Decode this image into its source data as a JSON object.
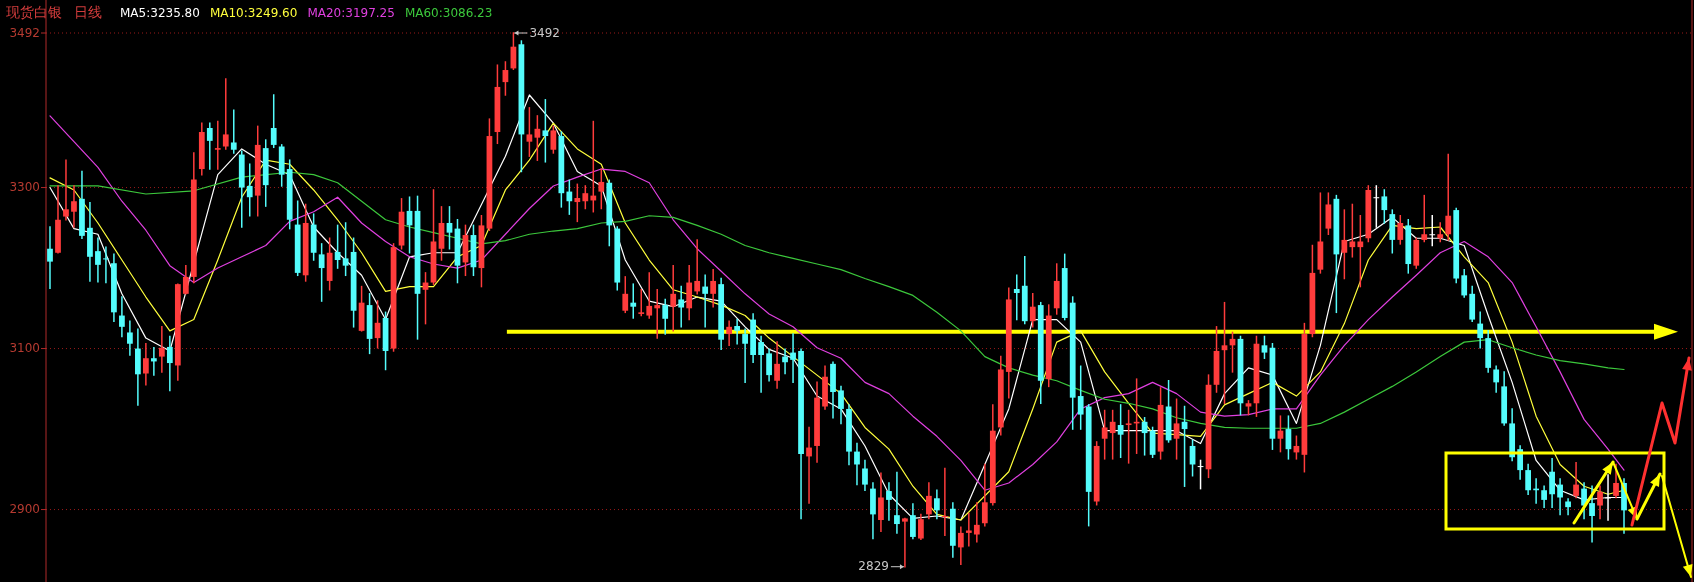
{
  "chart_data": {
    "type": "candlestick",
    "title": "现货白银",
    "subtitle": "日线",
    "legend": "top left",
    "grid": "y",
    "ylim": [
      2810,
      3533
    ],
    "yticks": [
      2900,
      3100,
      3300,
      3492
    ],
    "categories": [
      null,
      null,
      null,
      null,
      null,
      null,
      null,
      null,
      null,
      null,
      null,
      null,
      null,
      null,
      null,
      null,
      null,
      null,
      null,
      null,
      null,
      null,
      null,
      null,
      null,
      null,
      null,
      null,
      null,
      null,
      null,
      null,
      null,
      null,
      null,
      null,
      null,
      null,
      null,
      null,
      null,
      null,
      null,
      null,
      null,
      null,
      null,
      null,
      null,
      null,
      null,
      null,
      null,
      null,
      null,
      null,
      null,
      null,
      null,
      null,
      null,
      null,
      null,
      null,
      null,
      null,
      null,
      null,
      null,
      null,
      null,
      null,
      null,
      null,
      null,
      null,
      null,
      null,
      null,
      null,
      null,
      null,
      null,
      null,
      null,
      null,
      null,
      null,
      null,
      null,
      null,
      null,
      null,
      null,
      null,
      null,
      null,
      null,
      null,
      null,
      null,
      null,
      null,
      null,
      null,
      null,
      null,
      null,
      null,
      null,
      null,
      null,
      null,
      null,
      null,
      null,
      null,
      null,
      null,
      null,
      null,
      null,
      null,
      null,
      null,
      null,
      null,
      null,
      null,
      null,
      null,
      null,
      null,
      null,
      null,
      null,
      null,
      null,
      null,
      null,
      null,
      null,
      null,
      null,
      null,
      null,
      null,
      null,
      null,
      null,
      null,
      null,
      null,
      null,
      null,
      null,
      null,
      null,
      null,
      null,
      null,
      null,
      null,
      null,
      null,
      null,
      null,
      null,
      null,
      null,
      null,
      null,
      null,
      null,
      null,
      null,
      null,
      null,
      null,
      null,
      null,
      null,
      null,
      null,
      null,
      null,
      null,
      null,
      null,
      null,
      null,
      null,
      null,
      null,
      null,
      null,
      null,
      null
    ],
    "ohlc": [
      [
        3224,
        3251,
        3175,
        3208
      ],
      [
        3219,
        3302,
        3219,
        3260
      ],
      [
        3264,
        3334,
        3260,
        3273
      ],
      [
        3270,
        3302,
        3251,
        3283
      ],
      [
        3286,
        3320,
        3237,
        3240
      ],
      [
        3250,
        3281,
        3184,
        3214
      ],
      [
        3221,
        3237,
        3183,
        3204
      ],
      [
        3212,
        3226,
        3182,
        3211
      ],
      [
        3206,
        3217,
        3134,
        3145
      ],
      [
        3141,
        3164,
        3115,
        3127
      ],
      [
        3120,
        3134,
        3092,
        3106
      ],
      [
        3100,
        3124,
        3030,
        3068
      ],
      [
        3069,
        3106,
        3055,
        3088
      ],
      [
        3088,
        3101,
        3067,
        3084
      ],
      [
        3090,
        3127,
        3071,
        3101
      ],
      [
        3102,
        3115,
        3048,
        3082
      ],
      [
        3079,
        3180,
        3061,
        3180
      ],
      [
        3168,
        3203,
        3168,
        3189
      ],
      [
        3189,
        3343,
        3182,
        3310
      ],
      [
        3323,
        3380,
        3316,
        3369
      ],
      [
        3374,
        3380,
        3323,
        3358
      ],
      [
        3347,
        3382,
        3323,
        3349
      ],
      [
        3351,
        3435,
        3348,
        3366
      ],
      [
        3356,
        3396,
        3343,
        3347
      ],
      [
        3341,
        3345,
        3251,
        3300
      ],
      [
        3302,
        3329,
        3265,
        3288
      ],
      [
        3290,
        3376,
        3265,
        3353
      ],
      [
        3349,
        3359,
        3277,
        3303
      ],
      [
        3374,
        3415,
        3350,
        3353
      ],
      [
        3351,
        3353,
        3302,
        3316
      ],
      [
        3323,
        3334,
        3249,
        3260
      ],
      [
        3254,
        3283,
        3191,
        3194
      ],
      [
        3191,
        3279,
        3184,
        3256
      ],
      [
        3254,
        3267,
        3210,
        3219
      ],
      [
        3217,
        3230,
        3159,
        3200
      ],
      [
        3184,
        3237,
        3173,
        3219
      ],
      [
        3220,
        3253,
        3200,
        3210
      ],
      [
        3212,
        3256,
        3191,
        3203
      ],
      [
        3220,
        3237,
        3127,
        3147
      ],
      [
        3122,
        3177,
        3122,
        3157
      ],
      [
        3154,
        3168,
        3094,
        3112
      ],
      [
        3113,
        3159,
        3101,
        3132
      ],
      [
        3138,
        3145,
        3074,
        3097
      ],
      [
        3100,
        3230,
        3097,
        3226
      ],
      [
        3228,
        3286,
        3224,
        3270
      ],
      [
        3271,
        3288,
        3219,
        3253
      ],
      [
        3271,
        3289,
        3112,
        3168
      ],
      [
        3173,
        3194,
        3131,
        3182
      ],
      [
        3182,
        3297,
        3180,
        3233
      ],
      [
        3224,
        3276,
        3210,
        3256
      ],
      [
        3256,
        3276,
        3224,
        3244
      ],
      [
        3249,
        3260,
        3182,
        3203
      ],
      [
        3207,
        3253,
        3191,
        3241
      ],
      [
        3241,
        3253,
        3191,
        3201
      ],
      [
        3200,
        3265,
        3177,
        3253
      ],
      [
        3249,
        3385,
        3247,
        3364
      ],
      [
        3369,
        3452,
        3355,
        3425
      ],
      [
        3431,
        3456,
        3415,
        3446
      ],
      [
        3448,
        3492,
        3447,
        3475
      ],
      [
        3478,
        3482,
        3320,
        3366
      ],
      [
        3357,
        3399,
        3339,
        3366
      ],
      [
        3362,
        3389,
        3334,
        3373
      ],
      [
        3371,
        3409,
        3332,
        3364
      ],
      [
        3347,
        3376,
        3343,
        3371
      ],
      [
        3364,
        3369,
        3276,
        3293
      ],
      [
        3295,
        3309,
        3267,
        3283
      ],
      [
        3282,
        3304,
        3258,
        3287
      ],
      [
        3283,
        3302,
        3274,
        3293
      ],
      [
        3284,
        3382,
        3270,
        3290
      ],
      [
        3295,
        3323,
        3274,
        3307
      ],
      [
        3306,
        3309,
        3228,
        3253
      ],
      [
        3249,
        3251,
        3173,
        3182
      ],
      [
        3147,
        3189,
        3145,
        3168
      ],
      [
        3157,
        3180,
        3138,
        3152
      ],
      [
        3143,
        3173,
        3141,
        3145
      ],
      [
        3141,
        3194,
        3138,
        3153
      ],
      [
        3150,
        3173,
        3113,
        3154
      ],
      [
        3154,
        3161,
        3118,
        3137
      ],
      [
        3152,
        3203,
        3122,
        3168
      ],
      [
        3161,
        3177,
        3127,
        3151
      ],
      [
        3150,
        3203,
        3136,
        3182
      ],
      [
        3171,
        3235,
        3168,
        3184
      ],
      [
        3177,
        3191,
        3127,
        3168
      ],
      [
        3168,
        3198,
        3152,
        3184
      ],
      [
        3180,
        3187,
        3099,
        3111
      ],
      [
        3118,
        3134,
        3104,
        3127
      ],
      [
        3128,
        3136,
        3106,
        3122
      ],
      [
        3118,
        3124,
        3058,
        3106
      ],
      [
        3136,
        3143,
        3083,
        3092
      ],
      [
        3108,
        3115,
        3046,
        3092
      ],
      [
        3094,
        3099,
        3060,
        3067
      ],
      [
        3060,
        3108,
        3051,
        3081
      ],
      [
        3090,
        3099,
        3069,
        3083
      ],
      [
        3095,
        3118,
        3058,
        3086
      ],
      [
        3097,
        3099,
        2889,
        2969
      ],
      [
        2966,
        3002,
        2908,
        2977
      ],
      [
        2979,
        3058,
        2959,
        3039
      ],
      [
        3028,
        3078,
        3025,
        3065
      ],
      [
        3081,
        3083,
        3014,
        3046
      ],
      [
        3048,
        3053,
        3007,
        3025
      ],
      [
        3025,
        3030,
        2956,
        2972
      ],
      [
        2972,
        2982,
        2931,
        2956
      ],
      [
        2951,
        2961,
        2924,
        2931
      ],
      [
        2926,
        2933,
        2864,
        2894
      ],
      [
        2887,
        2945,
        2873,
        2915
      ],
      [
        2923,
        2933,
        2887,
        2912
      ],
      [
        2893,
        2946,
        2871,
        2882
      ],
      [
        2885,
        2889,
        2829,
        2889
      ],
      [
        2893,
        2907,
        2864,
        2866
      ],
      [
        2864,
        2894,
        2863,
        2888
      ],
      [
        2894,
        2933,
        2889,
        2917
      ],
      [
        2914,
        2924,
        2889,
        2899
      ],
      [
        2891,
        2951,
        2868,
        2892
      ],
      [
        2901,
        2908,
        2841,
        2855
      ],
      [
        2853,
        2878,
        2832,
        2871
      ],
      [
        2871,
        2895,
        2855,
        2874
      ],
      [
        2869,
        2908,
        2860,
        2881
      ],
      [
        2883,
        2956,
        2880,
        2909
      ],
      [
        2908,
        3030,
        2906,
        2998
      ],
      [
        3002,
        3090,
        2993,
        3074
      ],
      [
        3071,
        3175,
        3039,
        3161
      ],
      [
        3174,
        3191,
        3136,
        3169
      ],
      [
        3178,
        3214,
        3131,
        3134
      ],
      [
        3134,
        3168,
        3127,
        3152
      ],
      [
        3154,
        3157,
        3032,
        3060
      ],
      [
        3062,
        3154,
        3053,
        3141
      ],
      [
        3150,
        3205,
        3143,
        3184
      ],
      [
        3200,
        3217,
        3136,
        3138
      ],
      [
        3157,
        3164,
        3000,
        3039
      ],
      [
        3041,
        3078,
        3000,
        3018
      ],
      [
        3028,
        3030,
        2880,
        2922
      ],
      [
        2910,
        2984,
        2906,
        2979
      ],
      [
        2988,
        3023,
        2963,
        3002
      ],
      [
        2995,
        3023,
        2963,
        3009
      ],
      [
        3005,
        3030,
        2965,
        2993
      ],
      [
        3005,
        3023,
        2958,
        3007
      ],
      [
        3007,
        3062,
        2970,
        3009
      ],
      [
        3009,
        3014,
        2968,
        2995
      ],
      [
        2998,
        3002,
        2965,
        2968
      ],
      [
        2972,
        3051,
        2963,
        3030
      ],
      [
        3028,
        3060,
        2984,
        2986
      ],
      [
        2988,
        3037,
        2963,
        3007
      ],
      [
        3009,
        3028,
        2929,
        3000
      ],
      [
        2979,
        2986,
        2942,
        2956
      ],
      [
        2954,
        2961,
        2926,
        2954
      ],
      [
        2950,
        3067,
        2940,
        3055
      ],
      [
        3055,
        3127,
        3046,
        3097
      ],
      [
        3098,
        3157,
        3032,
        3104
      ],
      [
        3104,
        3120,
        3071,
        3112
      ],
      [
        3112,
        3115,
        3018,
        3032
      ],
      [
        3028,
        3035,
        3018,
        3032
      ],
      [
        3032,
        3115,
        3016,
        3106
      ],
      [
        3104,
        3115,
        3088,
        3095
      ],
      [
        3101,
        3106,
        2975,
        2988
      ],
      [
        2988,
        3016,
        2972,
        2998
      ],
      [
        3000,
        3016,
        2963,
        2975
      ],
      [
        2971,
        2991,
        2963,
        2979
      ],
      [
        2968,
        3131,
        2947,
        3118
      ],
      [
        3118,
        3228,
        3115,
        3194
      ],
      [
        3198,
        3293,
        3194,
        3233
      ],
      [
        3249,
        3293,
        3242,
        3279
      ],
      [
        3286,
        3290,
        3145,
        3217
      ],
      [
        3219,
        3272,
        3187,
        3235
      ],
      [
        3226,
        3279,
        3214,
        3233
      ],
      [
        3226,
        3265,
        3177,
        3233
      ],
      [
        3237,
        3302,
        3233,
        3297
      ],
      [
        3288,
        3302,
        3251,
        3288
      ],
      [
        3289,
        3297,
        3256,
        3272
      ],
      [
        3267,
        3272,
        3219,
        3235
      ],
      [
        3235,
        3265,
        3230,
        3256
      ],
      [
        3253,
        3260,
        3194,
        3205
      ],
      [
        3203,
        3237,
        3200,
        3235
      ],
      [
        3235,
        3290,
        3233,
        3242
      ],
      [
        3242,
        3265,
        3228,
        3242
      ],
      [
        3237,
        3256,
        3233,
        3242
      ],
      [
        3242,
        3341,
        3235,
        3265
      ],
      [
        3272,
        3274,
        3182,
        3187
      ],
      [
        3191,
        3198,
        3164,
        3166
      ],
      [
        3168,
        3177,
        3134,
        3136
      ],
      [
        3131,
        3145,
        3101,
        3113
      ],
      [
        3113,
        3122,
        3071,
        3076
      ],
      [
        3074,
        3078,
        3046,
        3058
      ],
      [
        3053,
        3071,
        3005,
        3007
      ],
      [
        3007,
        3025,
        2961,
        2965
      ],
      [
        2975,
        2979,
        2938,
        2949
      ],
      [
        2949,
        2956,
        2919,
        2924
      ],
      [
        2926,
        2938,
        2908,
        2924
      ],
      [
        2924,
        2929,
        2903,
        2912
      ],
      [
        2947,
        2963,
        2903,
        2919
      ],
      [
        2931,
        2938,
        2894,
        2915
      ],
      [
        2910,
        2913,
        2894,
        2903
      ],
      [
        2917,
        2958,
        2915,
        2931
      ],
      [
        2926,
        2933,
        2889,
        2905
      ],
      [
        2908,
        2929,
        2860,
        2892
      ],
      [
        2905,
        2929,
        2889,
        2922
      ],
      [
        2915,
        2943,
        2887,
        2915
      ],
      [
        2917,
        2956,
        2915,
        2933
      ],
      [
        2933,
        2938,
        2871,
        2899
      ]
    ],
    "colors": [
      "#54fcfc",
      "#ff3c3c",
      "#ff3c3c",
      "#ff3c3c",
      "#54fcfc",
      "#54fcfc",
      "#54fcfc",
      "#54fcfc",
      "#54fcfc",
      "#54fcfc",
      "#54fcfc",
      "#54fcfc",
      "#ff3c3c",
      "#54fcfc",
      "#ff3c3c",
      "#54fcfc",
      "#ff3c3c",
      "#ff3c3c",
      "#ff3c3c",
      "#ff3c3c",
      "#54fcfc",
      "#ff3c3c",
      "#ff3c3c",
      "#54fcfc",
      "#54fcfc",
      "#54fcfc",
      "#ff3c3c",
      "#54fcfc",
      "#54fcfc",
      "#54fcfc",
      "#54fcfc",
      "#54fcfc",
      "#ff3c3c",
      "#54fcfc",
      "#54fcfc",
      "#ff3c3c",
      "#54fcfc",
      "#54fcfc",
      "#54fcfc",
      "#ff3c3c",
      "#54fcfc",
      "#ff3c3c",
      "#54fcfc",
      "#ff3c3c",
      "#ff3c3c",
      "#54fcfc",
      "#54fcfc",
      "#ff3c3c",
      "#ff3c3c",
      "#ff3c3c",
      "#54fcfc",
      "#54fcfc",
      "#ff3c3c",
      "#54fcfc",
      "#ff3c3c",
      "#ff3c3c",
      "#ff3c3c",
      "#ff3c3c",
      "#ff3c3c",
      "#54fcfc",
      "#ff3c3c",
      "#ff3c3c",
      "#54fcfc",
      "#ff3c3c",
      "#54fcfc",
      "#54fcfc",
      "#ff3c3c",
      "#ff3c3c",
      "#ff3c3c",
      "#ff3c3c",
      "#54fcfc",
      "#54fcfc",
      "#ff3c3c",
      "#54fcfc",
      "#ff3c3c",
      "#ff3c3c",
      "#ff3c3c",
      "#54fcfc",
      "#ff3c3c",
      "#54fcfc",
      "#ff3c3c",
      "#ff3c3c",
      "#54fcfc",
      "#ff3c3c",
      "#54fcfc",
      "#ff3c3c",
      "#54fcfc",
      "#54fcfc",
      "#54fcfc",
      "#54fcfc",
      "#54fcfc",
      "#ff3c3c",
      "#54fcfc",
      "#54fcfc",
      "#54fcfc",
      "#ff3c3c",
      "#ff3c3c",
      "#ff3c3c",
      "#54fcfc",
      "#54fcfc",
      "#54fcfc",
      "#54fcfc",
      "#54fcfc",
      "#54fcfc",
      "#ff3c3c",
      "#54fcfc",
      "#54fcfc",
      "#ff3c3c",
      "#54fcfc",
      "#ff3c3c",
      "#ff3c3c",
      "#54fcfc",
      "#ff3c3c",
      "#54fcfc",
      "#ff3c3c",
      "#ff3c3c",
      "#ff3c3c",
      "#ff3c3c",
      "#ff3c3c",
      "#ff3c3c",
      "#ff3c3c",
      "#54fcfc",
      "#54fcfc",
      "#ff3c3c",
      "#54fcfc",
      "#ff3c3c",
      "#ff3c3c",
      "#54fcfc",
      "#54fcfc",
      "#54fcfc",
      "#54fcfc",
      "#ff3c3c",
      "#ff3c3c",
      "#ff3c3c",
      "#54fcfc",
      "#ff3c3c",
      "#ff3c3c",
      "#54fcfc",
      "#54fcfc",
      "#ff3c3c",
      "#54fcfc",
      "#ff3c3c",
      "#54fcfc",
      "#54fcfc",
      "#ffffff",
      "#ff3c3c",
      "#ff3c3c",
      "#ff3c3c",
      "#ff3c3c",
      "#54fcfc",
      "#ff3c3c",
      "#ff3c3c",
      "#54fcfc",
      "#54fcfc",
      "#ff3c3c",
      "#54fcfc",
      "#ff3c3c",
      "#ff3c3c",
      "#ff3c3c",
      "#ff3c3c",
      "#ff3c3c",
      "#54fcfc",
      "#ff3c3c",
      "#ff3c3c",
      "#ff3c3c",
      "#ff3c3c",
      "#ffffff",
      "#54fcfc",
      "#54fcfc",
      "#ff3c3c",
      "#54fcfc",
      "#ff3c3c",
      "#ff3c3c",
      "#ffffff",
      "#ff3c3c",
      "#ff3c3c",
      "#54fcfc",
      "#54fcfc",
      "#54fcfc",
      "#54fcfc",
      "#54fcfc",
      "#54fcfc",
      "#54fcfc",
      "#54fcfc",
      "#54fcfc",
      "#54fcfc",
      "#54fcfc",
      "#54fcfc",
      "#54fcfc",
      "#54fcfc",
      "#54fcfc",
      "#ff3c3c",
      "#54fcfc",
      "#54fcfc",
      "#ff3c3c",
      "#ffffff",
      "#ff3c3c",
      "#54fcfc"
    ],
    "series": [
      {
        "name": "MA5:3235.80",
        "type": "line",
        "color": "#ffffff",
        "values": [
          3300,
          null,
          null,
          3249,
          null,
          null,
          3242,
          null,
          null,
          3168,
          null,
          null,
          3113,
          null,
          null,
          3097,
          null,
          null,
          null,
          null,
          null,
          3316,
          null,
          null,
          3348,
          null,
          null,
          3329,
          null,
          null,
          3316,
          null,
          null,
          3251,
          null,
          null,
          3219,
          null,
          null,
          3191,
          null,
          null,
          3136,
          null,
          null,
          3214,
          null,
          null,
          3219,
          null,
          null,
          3219,
          null,
          null,
          null,
          null,
          null,
          3339,
          null,
          null,
          3415,
          null,
          null,
          3380,
          null,
          null,
          3320,
          null,
          null,
          3302,
          null,
          null,
          3210,
          null,
          null,
          3159,
          null,
          null,
          3152,
          null,
          null,
          3164,
          null,
          null,
          3159,
          null,
          null,
          3127,
          null,
          null,
          3099,
          null,
          null,
          3088,
          null,
          null,
          3041,
          null,
          null,
          3025,
          null,
          null,
          2979,
          null,
          null,
          2919,
          null,
          null,
          2889,
          null,
          null,
          2892,
          null,
          null,
          2887,
          null,
          null,
          null,
          null,
          null,
          3025,
          null,
          null,
          3136,
          null,
          null,
          3136,
          null,
          null,
          3108,
          null,
          null,
          2998,
          null,
          null,
          2998,
          null,
          null,
          2998,
          null,
          null,
          2998,
          null,
          null,
          2982,
          null,
          null,
          3044,
          null,
          null,
          3076,
          null,
          null,
          3067,
          null,
          null,
          3007,
          null,
          null,
          3104,
          null,
          null,
          3233,
          null,
          null,
          3242,
          null,
          null,
          3263,
          null,
          null,
          3237,
          null,
          null,
          3237,
          null,
          null,
          3228,
          null,
          null,
          3141,
          null,
          null,
          3058,
          null,
          null,
          2961,
          null,
          null,
          2924,
          null,
          null,
          2912,
          null,
          null,
          2915,
          null,
          2915
        ]
      },
      {
        "name": "MA10:3249.60",
        "type": "line",
        "color": "#ffff3c",
        "values": [
          3312,
          null,
          null,
          3297,
          null,
          null,
          3256,
          null,
          null,
          3210,
          null,
          null,
          3164,
          null,
          null,
          3122,
          null,
          null,
          3136,
          null,
          null,
          3210,
          null,
          null,
          3288,
          null,
          null,
          3334,
          null,
          null,
          3329,
          null,
          null,
          3297,
          null,
          null,
          3260,
          null,
          null,
          3219,
          null,
          null,
          3171,
          null,
          null,
          3177,
          null,
          null,
          3177,
          null,
          null,
          3214,
          null,
          null,
          3228,
          null,
          null,
          3297,
          null,
          null,
          3334,
          null,
          null,
          3380,
          null,
          null,
          3348,
          null,
          null,
          3329,
          null,
          null,
          3256,
          null,
          null,
          3210,
          null,
          null,
          3173,
          null,
          null,
          3164,
          null,
          null,
          3154,
          null,
          null,
          3141,
          null,
          null,
          3113,
          null,
          null,
          3090,
          null,
          null,
          3067,
          null,
          null,
          3044,
          null,
          null,
          3002,
          null,
          null,
          2975,
          null,
          null,
          2929,
          null,
          null,
          2894,
          null,
          null,
          2887,
          null,
          null,
          null,
          null,
          null,
          2947,
          null,
          null,
          3025,
          null,
          null,
          3108,
          null,
          null,
          3122,
          null,
          null,
          3071,
          null,
          null,
          3032,
          null,
          null,
          2995,
          null,
          null,
          2993,
          null,
          null,
          2991,
          null,
          null,
          3030,
          null,
          null,
          3044,
          null,
          null,
          3058,
          null,
          null,
          3041,
          null,
          null,
          3071,
          null,
          null,
          3131,
          null,
          null,
          3210,
          null,
          null,
          3253,
          null,
          null,
          3249,
          null,
          null,
          3251,
          null,
          null,
          3214,
          null,
          null,
          3182,
          null,
          null,
          3108,
          null,
          null,
          3016,
          null,
          null,
          2956,
          null,
          null,
          2929,
          null,
          null,
          2919,
          null,
          2924
        ]
      },
      {
        "name": "MA20:3197.25",
        "type": "line",
        "color": "#e040e0",
        "values": [
          3389,
          null,
          null,
          3357,
          null,
          null,
          3325,
          null,
          null,
          3283,
          null,
          null,
          3247,
          null,
          null,
          3203,
          null,
          null,
          3182,
          null,
          null,
          3200,
          null,
          null,
          3214,
          null,
          null,
          3228,
          null,
          null,
          3258,
          null,
          null,
          3270,
          null,
          null,
          3288,
          null,
          null,
          3256,
          null,
          null,
          3233,
          null,
          null,
          3214,
          null,
          null,
          3205,
          null,
          null,
          3200,
          null,
          null,
          3210,
          null,
          null,
          3242,
          null,
          null,
          3274,
          null,
          null,
          3302,
          null,
          null,
          3313,
          null,
          null,
          3323,
          null,
          null,
          3320,
          null,
          null,
          3306,
          null,
          null,
          3260,
          null,
          null,
          3224,
          null,
          null,
          3196,
          null,
          null,
          3168,
          null,
          null,
          3143,
          null,
          null,
          3127,
          null,
          null,
          3101,
          null,
          null,
          3088,
          null,
          null,
          3058,
          null,
          null,
          3044,
          null,
          null,
          3016,
          null,
          null,
          2991,
          null,
          null,
          2961,
          null,
          null,
          2924,
          null,
          null,
          2933,
          null,
          null,
          2956,
          null,
          null,
          2984,
          null,
          null,
          3025,
          null,
          null,
          3039,
          null,
          null,
          3044,
          null,
          null,
          3058,
          null,
          null,
          3044,
          null,
          null,
          3021,
          null,
          null,
          3016,
          null,
          null,
          3018,
          null,
          null,
          3025,
          null,
          null,
          3025,
          null,
          null,
          3067,
          null,
          null,
          3104,
          null,
          null,
          3136,
          null,
          null,
          3164,
          null,
          null,
          3191,
          null,
          null,
          3219,
          null,
          null,
          3233,
          null,
          null,
          3214,
          null,
          null,
          3182,
          null,
          null,
          3127,
          null,
          null,
          3071,
          null,
          null,
          3012,
          null,
          null,
          2975,
          null,
          2949
        ]
      },
      {
        "name": "MA60:3086.23",
        "type": "line",
        "color": "#3cc83c",
        "values": [
          3302,
          null,
          null,
          null,
          null,
          null,
          3302,
          null,
          null,
          null,
          null,
          null,
          3292,
          null,
          null,
          null,
          null,
          null,
          3296,
          null,
          null,
          null,
          null,
          null,
          3313,
          null,
          null,
          null,
          null,
          null,
          3319,
          null,
          null,
          3316,
          null,
          null,
          3306,
          null,
          null,
          3283,
          null,
          null,
          3260,
          null,
          null,
          3251,
          null,
          null,
          3244,
          null,
          null,
          3237,
          null,
          null,
          3230,
          null,
          null,
          3234,
          null,
          null,
          3242,
          null,
          null,
          3246,
          null,
          null,
          3249,
          null,
          null,
          3256,
          null,
          null,
          3258,
          null,
          null,
          3265,
          null,
          null,
          3263,
          null,
          null,
          3253,
          null,
          null,
          3242,
          null,
          null,
          3228,
          null,
          null,
          3219,
          null,
          null,
          3212,
          null,
          null,
          3205,
          null,
          null,
          3198,
          null,
          null,
          3187,
          null,
          null,
          3177,
          null,
          null,
          3166,
          null,
          null,
          3145,
          null,
          null,
          3122,
          null,
          null,
          3090,
          null,
          null,
          3076,
          null,
          null,
          3067,
          null,
          null,
          3060,
          null,
          null,
          3048,
          null,
          null,
          3037,
          null,
          null,
          3032,
          null,
          null,
          3025,
          null,
          null,
          3014,
          null,
          null,
          3007,
          null,
          null,
          3002,
          null,
          null,
          3001,
          null,
          null,
          3001,
          null,
          null,
          3001,
          null,
          null,
          3007,
          null,
          null,
          3021,
          null,
          null,
          3037,
          null,
          null,
          3053,
          null,
          null,
          3071,
          null,
          null,
          3090,
          null,
          null,
          3108,
          null,
          null,
          3111,
          null,
          null,
          3101,
          null,
          null,
          3092,
          null,
          null,
          3085,
          null,
          null,
          3081,
          null,
          null,
          3076,
          null,
          3074
        ]
      }
    ],
    "ref_lines": [
      {
        "axis": "y",
        "value": 3121,
        "color": "#ffff00"
      }
    ],
    "annotations": [
      "3492",
      "2829"
    ]
  }
}
